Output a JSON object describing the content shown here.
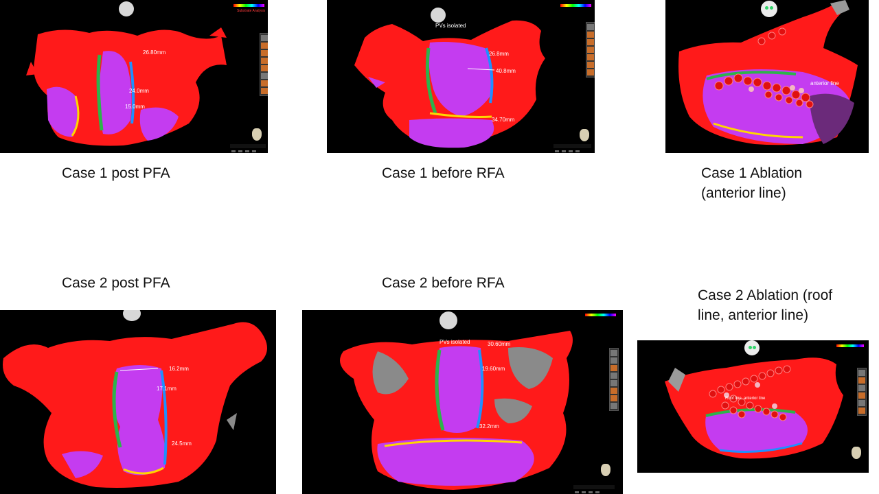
{
  "captions": {
    "c1_post_pfa": "Case 1 post PFA",
    "c1_before_rfa": "Case 1 before RFA",
    "c1_ablation": "Case 1 Ablation\n(anterior line)",
    "c2_post_pfa": "Case 2 post PFA",
    "c2_before_rfa": "Case 2 before RFA",
    "c2_ablation": "Case 2 Ablation (roof\nline, anterior line)"
  },
  "panel1": {
    "measurements": [
      "26.80mm",
      "24.0mm",
      "15.0mm"
    ],
    "overlay_text": "Substrate Analysis"
  },
  "panel2": {
    "pvs_label": "PVs isolated",
    "measurements": [
      "26.8mm",
      "40.8mm",
      "34.70mm"
    ]
  },
  "panel3": {
    "line_label": "anterior line"
  },
  "panel4": {
    "measurements": [
      "16.2mm",
      "17.1mm",
      "24.5mm"
    ]
  },
  "panel5": {
    "pvs_label": "PVs isolated",
    "measurements": [
      "30.60mm",
      "19.60mm",
      "32.2mm"
    ]
  },
  "panel6": {
    "line_label": "Roof line, anterior line"
  },
  "colors": {
    "map_red": "#ff1a1a",
    "map_magenta": "#c43cf0",
    "healthy_gray": "#8a8a8a"
  }
}
